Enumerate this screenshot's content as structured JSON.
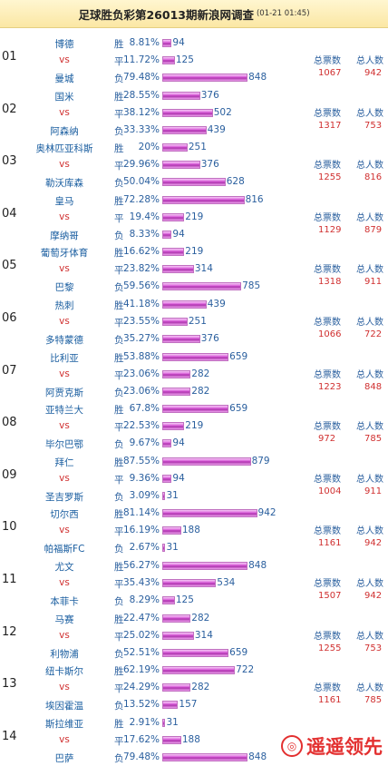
{
  "header": {
    "title": "足球胜负彩第26013期新浪网调查",
    "datetime": "(01-21 01:45)"
  },
  "labels": {
    "vs": "vs",
    "win": "胜",
    "draw": "平",
    "loss": "负",
    "total_votes": "总票数",
    "total_people": "总人数"
  },
  "watermark": "遥遥领先",
  "matches": [
    {
      "no": "01",
      "home": "博德",
      "away": "曼城",
      "win_pct": "8.81%",
      "win": 94,
      "draw_pct": "11.72%",
      "draw": 125,
      "loss_pct": "79.48%",
      "loss": 848,
      "votes": "1067",
      "people": "942"
    },
    {
      "no": "02",
      "home": "国米",
      "away": "阿森纳",
      "win_pct": "28.55%",
      "win": 376,
      "draw_pct": "38.12%",
      "draw": 502,
      "loss_pct": "33.33%",
      "loss": 439,
      "votes": "1317",
      "people": "753"
    },
    {
      "no": "03",
      "home": "奥林匹亚科斯",
      "away": "勒沃库森",
      "win_pct": "20%",
      "win": 251,
      "draw_pct": "29.96%",
      "draw": 376,
      "loss_pct": "50.04%",
      "loss": 628,
      "votes": "1255",
      "people": "816"
    },
    {
      "no": "04",
      "home": "皇马",
      "away": "摩纳哥",
      "win_pct": "72.28%",
      "win": 816,
      "draw_pct": "19.4%",
      "draw": 219,
      "loss_pct": "8.33%",
      "loss": 94,
      "votes": "1129",
      "people": "879"
    },
    {
      "no": "05",
      "home": "葡萄牙体育",
      "away": "巴黎",
      "win_pct": "16.62%",
      "win": 219,
      "draw_pct": "23.82%",
      "draw": 314,
      "loss_pct": "59.56%",
      "loss": 785,
      "votes": "1318",
      "people": "911"
    },
    {
      "no": "06",
      "home": "热刺",
      "away": "多特蒙德",
      "win_pct": "41.18%",
      "win": 439,
      "draw_pct": "23.55%",
      "draw": 251,
      "loss_pct": "35.27%",
      "loss": 376,
      "votes": "1066",
      "people": "722"
    },
    {
      "no": "07",
      "home": "比利亚",
      "away": "阿贾克斯",
      "win_pct": "53.88%",
      "win": 659,
      "draw_pct": "23.06%",
      "draw": 282,
      "loss_pct": "23.06%",
      "loss": 282,
      "votes": "1223",
      "people": "848"
    },
    {
      "no": "08",
      "home": "亚特兰大",
      "away": "毕尔巴鄂",
      "win_pct": "67.8%",
      "win": 659,
      "draw_pct": "22.53%",
      "draw": 219,
      "loss_pct": "9.67%",
      "loss": 94,
      "votes": "972",
      "people": "785"
    },
    {
      "no": "09",
      "home": "拜仁",
      "away": "圣吉罗斯",
      "win_pct": "87.55%",
      "win": 879,
      "draw_pct": "9.36%",
      "draw": 94,
      "loss_pct": "3.09%",
      "loss": 31,
      "votes": "1004",
      "people": "911"
    },
    {
      "no": "10",
      "home": "切尔西",
      "away": "帕福斯FC",
      "win_pct": "81.14%",
      "win": 942,
      "draw_pct": "16.19%",
      "draw": 188,
      "loss_pct": "2.67%",
      "loss": 31,
      "votes": "1161",
      "people": "942"
    },
    {
      "no": "11",
      "home": "尤文",
      "away": "本菲卡",
      "win_pct": "56.27%",
      "win": 848,
      "draw_pct": "35.43%",
      "draw": 534,
      "loss_pct": "8.29%",
      "loss": 125,
      "votes": "1507",
      "people": "942"
    },
    {
      "no": "12",
      "home": "马赛",
      "away": "利物浦",
      "win_pct": "22.47%",
      "win": 282,
      "draw_pct": "25.02%",
      "draw": 314,
      "loss_pct": "52.51%",
      "loss": 659,
      "votes": "1255",
      "people": "753"
    },
    {
      "no": "13",
      "home": "纽卡斯尔",
      "away": "埃因霍温",
      "win_pct": "62.19%",
      "win": 722,
      "draw_pct": "24.29%",
      "draw": 282,
      "loss_pct": "13.52%",
      "loss": 157,
      "votes": "1161",
      "people": "785"
    },
    {
      "no": "14",
      "home": "斯拉维亚",
      "away": "巴萨",
      "win_pct": "2.91%",
      "win": 31,
      "draw_pct": "17.62%",
      "draw": 188,
      "loss_pct": "79.48%",
      "loss": 848,
      "votes": "",
      "people": ""
    }
  ]
}
